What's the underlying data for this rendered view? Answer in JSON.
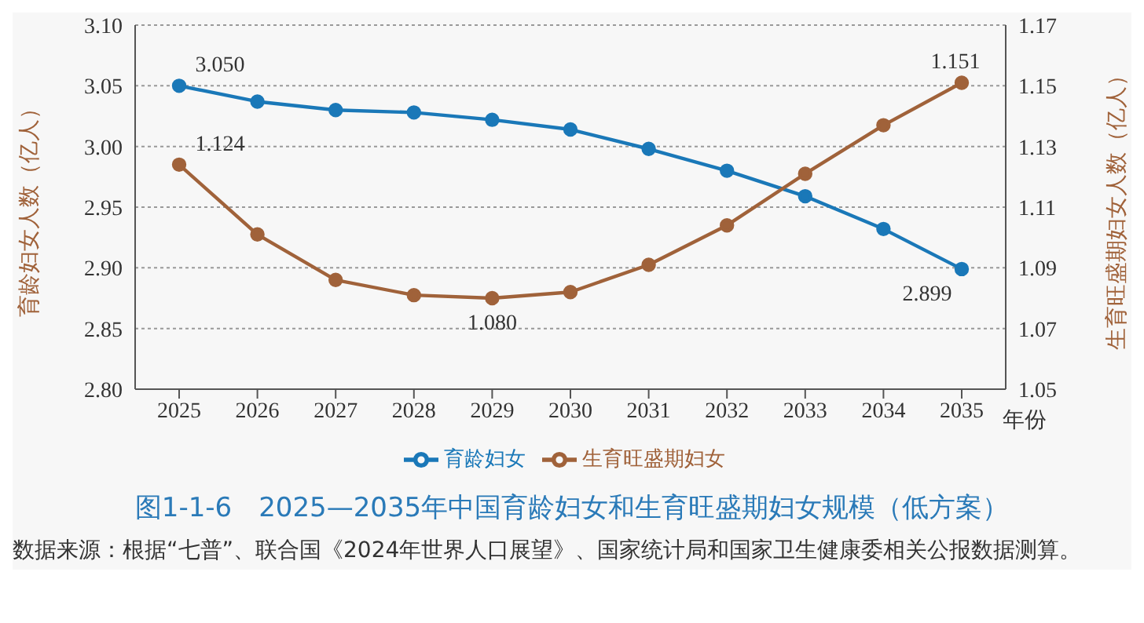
{
  "chart_data": {
    "type": "line",
    "title": "图1-1-6　2025—2035年中国育龄妇女和生育旺盛期妇女规模（低方案）",
    "xlabel": "年份",
    "ylabel": "育龄妇女人数（亿人）",
    "y2label": "生育旺盛期妇女人数（亿人）",
    "categories": [
      "2025",
      "2026",
      "2027",
      "2028",
      "2029",
      "2030",
      "2031",
      "2032",
      "2033",
      "2034",
      "2035"
    ],
    "series": [
      {
        "name": "育龄妇女",
        "color": "#1a78b8",
        "values": [
          3.05,
          3.037,
          3.03,
          3.028,
          3.022,
          3.014,
          2.998,
          2.98,
          2.959,
          2.932,
          2.899
        ],
        "value_labels": [
          "3.050",
          null,
          null,
          null,
          null,
          null,
          null,
          null,
          null,
          null,
          "2.899"
        ]
      },
      {
        "name": "生育旺盛期妇女",
        "color": "#a0623a",
        "axis": "y2",
        "values": [
          1.124,
          1.101,
          1.086,
          1.081,
          1.08,
          1.082,
          1.091,
          1.104,
          1.121,
          1.137,
          1.151
        ],
        "value_labels": [
          "1.124",
          null,
          null,
          null,
          "1.080",
          null,
          null,
          null,
          null,
          null,
          "1.151"
        ]
      }
    ],
    "ylim": [
      2.8,
      3.1
    ],
    "yticks": [
      {
        "value": 2.8,
        "label": "2.80"
      },
      2.85,
      {
        "value": 2.9,
        "label": "2.90"
      },
      2.95,
      {
        "value": 3.0,
        "label": "3.00"
      },
      3.05,
      {
        "value": 3.1,
        "label": "3.10"
      }
    ],
    "y2lim": [
      1.05,
      1.17
    ],
    "y2ticks": [
      1.05,
      1.07,
      1.09,
      1.11,
      1.13,
      1.15,
      1.17
    ],
    "grid": "y",
    "legend": "bottom",
    "marker": "circle",
    "line_style": "solid",
    "annotations": [
      "数据来源：根据“七普”、联合国《2024年世界人口展望》、国家统计局和国家卫生健康委相关公报数据测算。"
    ]
  }
}
